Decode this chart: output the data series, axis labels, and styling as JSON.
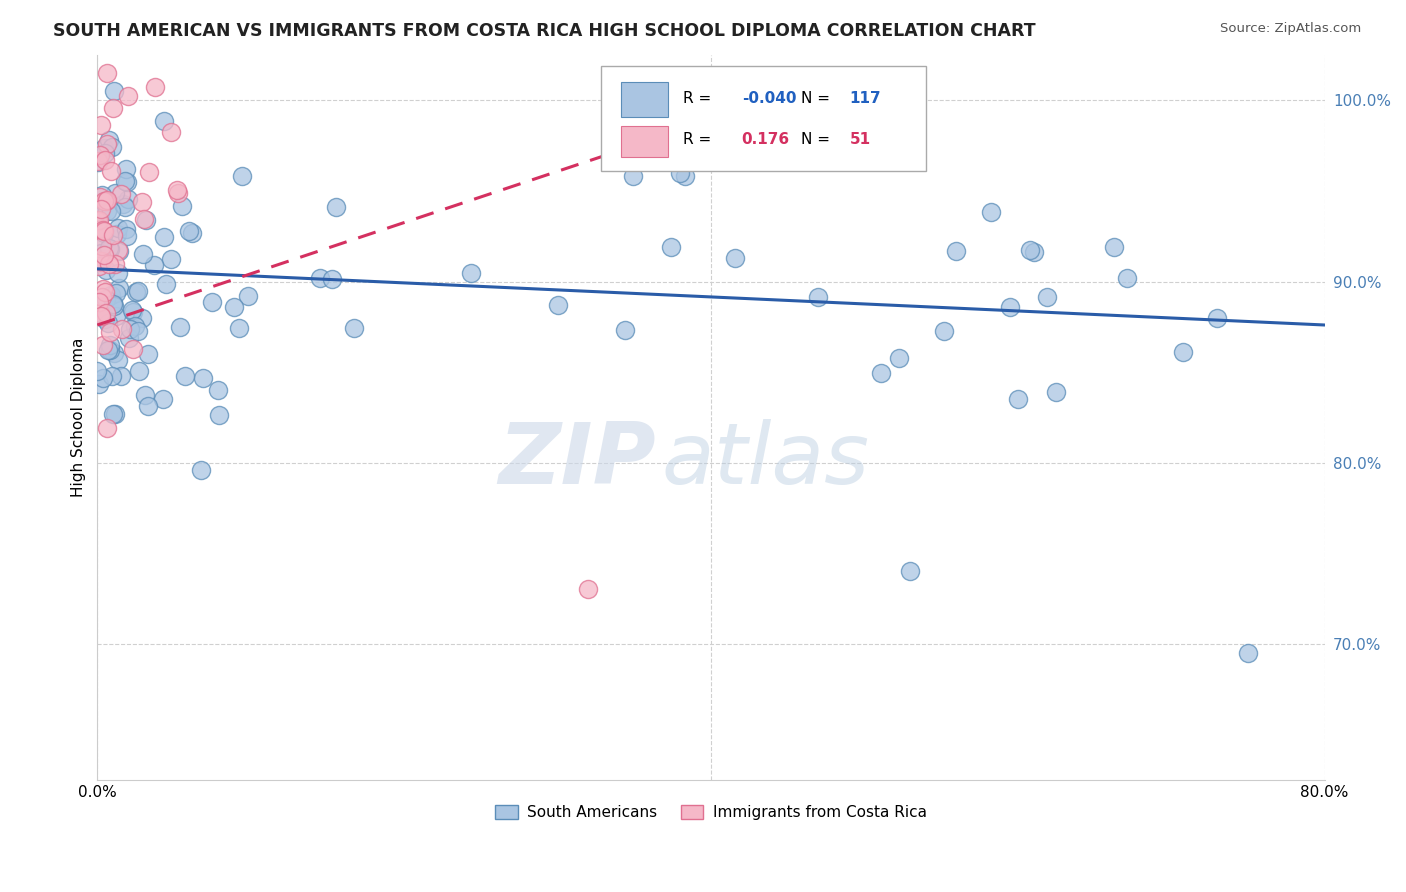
{
  "title": "SOUTH AMERICAN VS IMMIGRANTS FROM COSTA RICA HIGH SCHOOL DIPLOMA CORRELATION CHART",
  "source": "Source: ZipAtlas.com",
  "ylabel": "High School Diploma",
  "xmin": 0.0,
  "xmax": 0.8,
  "ymin": 0.625,
  "ymax": 1.025,
  "blue_R": "-0.040",
  "blue_N": "117",
  "pink_R": "0.176",
  "pink_N": "51",
  "blue_color": "#aac5e2",
  "blue_edge": "#5b8db8",
  "pink_color": "#f5b8c8",
  "pink_edge": "#e07090",
  "blue_line_color": "#2a5ca8",
  "pink_line_color": "#d43060",
  "watermark_zip": "ZIP",
  "watermark_atlas": "atlas",
  "legend_label_blue": "South Americans",
  "legend_label_pink": "Immigrants from Costa Rica"
}
